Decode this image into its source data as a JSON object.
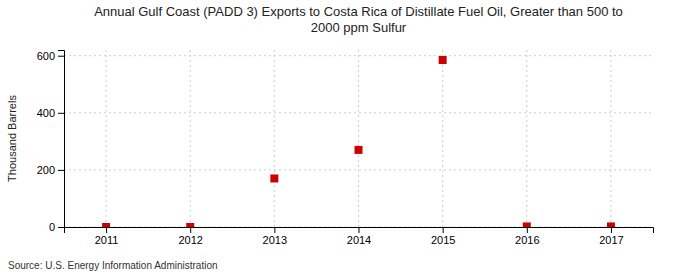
{
  "chart_data": {
    "type": "scatter",
    "title": "Annual Gulf Coast (PADD 3) Exports to Costa Rica of Distillate Fuel Oil, Greater than 500 to\n2000 ppm Sulfur",
    "y_label": "Thousand Barrels",
    "source": "Source: U.S. Energy Information Administration",
    "x": [
      2011,
      2012,
      2013,
      2014,
      2015,
      2016,
      2017
    ],
    "values": [
      0,
      0,
      170,
      270,
      585,
      2,
      2
    ],
    "xlim": [
      2010.5,
      2017.5
    ],
    "ylim": [
      0,
      620
    ],
    "xticks": [
      2011,
      2012,
      2013,
      2014,
      2015,
      2016,
      2017
    ],
    "yticks": [
      0,
      200,
      400,
      600
    ],
    "color": "#cc0000",
    "marker": "square",
    "grid": true
  }
}
